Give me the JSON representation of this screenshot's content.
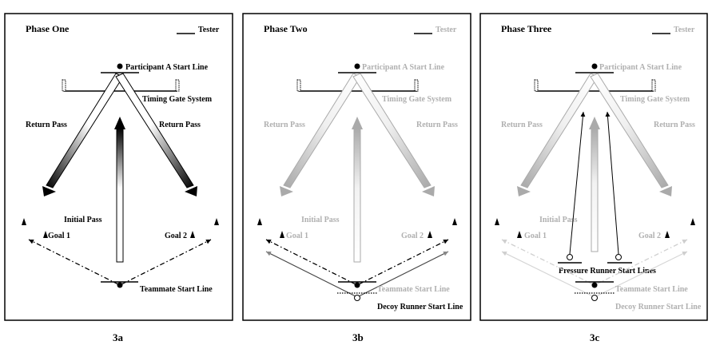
{
  "panels": [
    {
      "title": "Phase One",
      "tester": "Tester",
      "caption": "3a",
      "labels": {
        "start_line": "Participant A Start Line",
        "timing_gate": "Timing Gate System",
        "return_pass_left": "Return Pass",
        "return_pass_right": "Return Pass",
        "initial_pass": "Initial Pass",
        "goal_1": "Goal 1",
        "goal_2": "Goal 2",
        "teammate_start": "Teammate Start Line"
      }
    },
    {
      "title": "Phase Two",
      "tester": "Tester",
      "caption": "3b",
      "labels": {
        "start_line": "Participant A Start Line",
        "timing_gate": "Timing Gate System",
        "return_pass_left": "Return Pass",
        "return_pass_right": "Return Pass",
        "initial_pass": "Initial Pass",
        "goal_1": "Goal 1",
        "goal_2": "Goal 2",
        "teammate_start": "Teammate Start Line",
        "decoy_start": "Decoy Runner Start Line"
      }
    },
    {
      "title": "Phase Three",
      "tester": "Tester",
      "caption": "3c",
      "labels": {
        "start_line": "Participant A Start Line",
        "timing_gate": "Timing Gate System",
        "return_pass_left": "Return Pass",
        "return_pass_right": "Return Pass",
        "initial_pass": "Initial Pass",
        "goal_1": "Goal 1",
        "goal_2": "Goal 2",
        "pressure_start": "Pressure Runner Start Lines",
        "teammate_start": "Teammate Start Line",
        "decoy_start": "Decoy Runner Start Line"
      }
    }
  ],
  "colors": {
    "black": "#000000",
    "faded_text": "#b0b0b0",
    "faded_arrow": "#bdbdbd",
    "very_faded": "#d8d8d8"
  }
}
